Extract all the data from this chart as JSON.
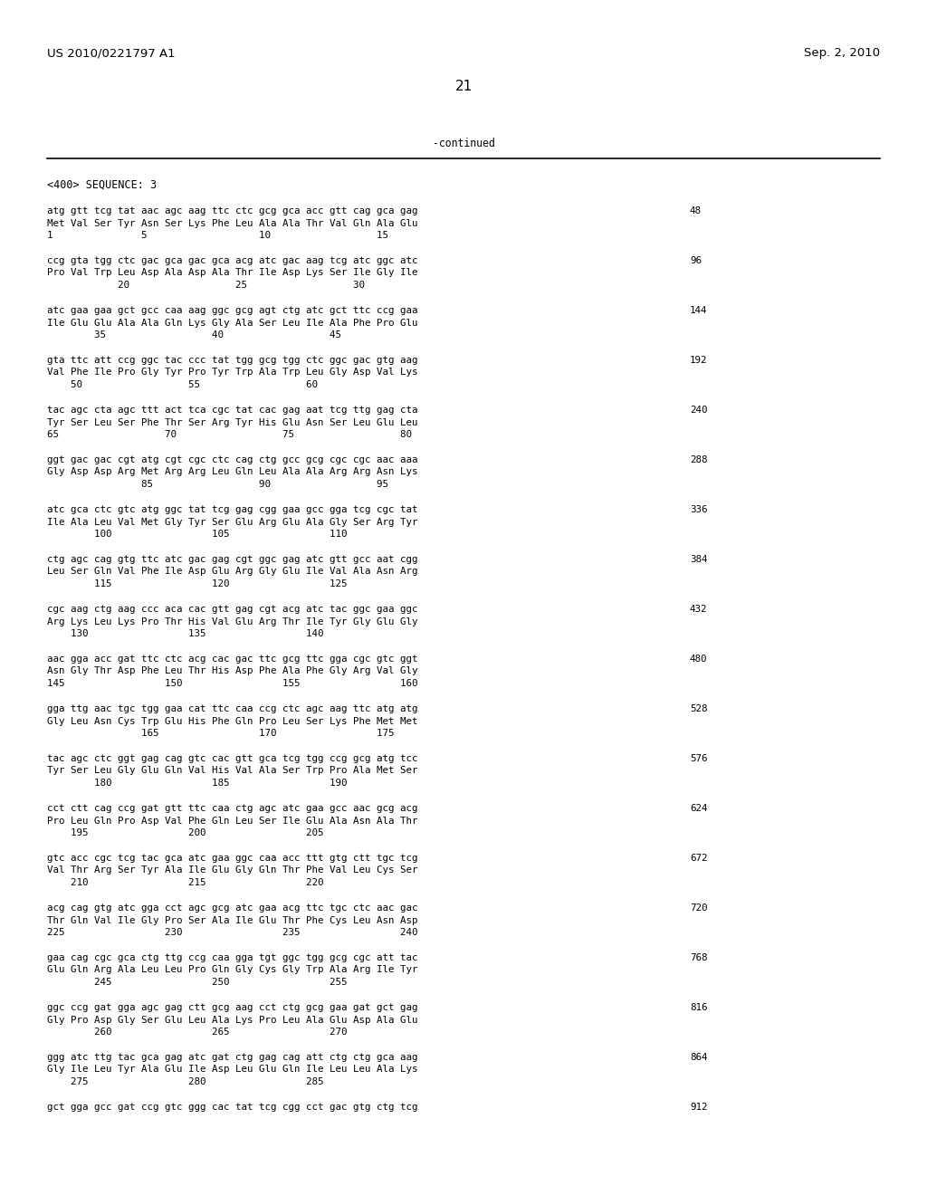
{
  "header_left": "US 2010/0221797 A1",
  "header_right": "Sep. 2, 2010",
  "page_number": "21",
  "continued_text": "-continued",
  "background_color": "#ffffff",
  "text_color": "#000000",
  "sequence_label": "<400> SEQUENCE: 3",
  "blocks": [
    {
      "dna": "atg gtt tcg tat aac agc aag ttc ctc gcg gca acc gtt cag gca gag",
      "num_right": "48",
      "aa": "Met Val Ser Tyr Asn Ser Lys Phe Leu Ala Ala Thr Val Gln Ala Glu",
      "pos": "1               5                   10                  15"
    },
    {
      "dna": "ccg gta tgg ctc gac gca gac gca acg atc gac aag tcg atc ggc atc",
      "num_right": "96",
      "aa": "Pro Val Trp Leu Asp Ala Asp Ala Thr Ile Asp Lys Ser Ile Gly Ile",
      "pos": "            20                  25                  30"
    },
    {
      "dna": "atc gaa gaa gct gcc caa aag ggc gcg agt ctg atc gct ttc ccg gaa",
      "num_right": "144",
      "aa": "Ile Glu Glu Ala Ala Gln Lys Gly Ala Ser Leu Ile Ala Phe Pro Glu",
      "pos": "        35                  40                  45"
    },
    {
      "dna": "gta ttc att ccg ggc tac ccc tat tgg gcg tgg ctc ggc gac gtg aag",
      "num_right": "192",
      "aa": "Val Phe Ile Pro Gly Tyr Pro Tyr Trp Ala Trp Leu Gly Asp Val Lys",
      "pos": "    50                  55                  60"
    },
    {
      "dna": "tac agc cta agc ttt act tca cgc tat cac gag aat tcg ttg gag cta",
      "num_right": "240",
      "aa": "Tyr Ser Leu Ser Phe Thr Ser Arg Tyr His Glu Asn Ser Leu Glu Leu",
      "pos": "65                  70                  75                  80"
    },
    {
      "dna": "ggt gac gac cgt atg cgt cgc ctc cag ctg gcc gcg cgc cgc aac aaa",
      "num_right": "288",
      "aa": "Gly Asp Asp Arg Met Arg Arg Leu Gln Leu Ala Ala Arg Arg Asn Lys",
      "pos": "                85                  90                  95"
    },
    {
      "dna": "atc gca ctc gtc atg ggc tat tcg gag cgg gaa gcc gga tcg cgc tat",
      "num_right": "336",
      "aa": "Ile Ala Leu Val Met Gly Tyr Ser Glu Arg Glu Ala Gly Ser Arg Tyr",
      "pos": "        100                 105                 110"
    },
    {
      "dna": "ctg agc cag gtg ttc atc gac gag cgt ggc gag atc gtt gcc aat cgg",
      "num_right": "384",
      "aa": "Leu Ser Gln Val Phe Ile Asp Glu Arg Gly Glu Ile Val Ala Asn Arg",
      "pos": "        115                 120                 125"
    },
    {
      "dna": "cgc aag ctg aag ccc aca cac gtt gag cgt acg atc tac ggc gaa ggc",
      "num_right": "432",
      "aa": "Arg Lys Leu Lys Pro Thr His Val Glu Arg Thr Ile Tyr Gly Glu Gly",
      "pos": "    130                 135                 140"
    },
    {
      "dna": "aac gga acc gat ttc ctc acg cac gac ttc gcg ttc gga cgc gtc ggt",
      "num_right": "480",
      "aa": "Asn Gly Thr Asp Phe Leu Thr His Asp Phe Ala Phe Gly Arg Val Gly",
      "pos": "145                 150                 155                 160"
    },
    {
      "dna": "gga ttg aac tgc tgg gaa cat ttc caa ccg ctc agc aag ttc atg atg",
      "num_right": "528",
      "aa": "Gly Leu Asn Cys Trp Glu His Phe Gln Pro Leu Ser Lys Phe Met Met",
      "pos": "                165                 170                 175"
    },
    {
      "dna": "tac agc ctc ggt gag cag gtc cac gtt gca tcg tgg ccg gcg atg tcc",
      "num_right": "576",
      "aa": "Tyr Ser Leu Gly Glu Gln Val His Val Ala Ser Trp Pro Ala Met Ser",
      "pos": "        180                 185                 190"
    },
    {
      "dna": "cct ctt cag ccg gat gtt ttc caa ctg agc atc gaa gcc aac gcg acg",
      "num_right": "624",
      "aa": "Pro Leu Gln Pro Asp Val Phe Gln Leu Ser Ile Glu Ala Asn Ala Thr",
      "pos": "    195                 200                 205"
    },
    {
      "dna": "gtc acc cgc tcg tac gca atc gaa ggc caa acc ttt gtg ctt tgc tcg",
      "num_right": "672",
      "aa": "Val Thr Arg Ser Tyr Ala Ile Glu Gly Gln Thr Phe Val Leu Cys Ser",
      "pos": "    210                 215                 220"
    },
    {
      "dna": "acg cag gtg atc gga cct agc gcg atc gaa acg ttc tgc ctc aac gac",
      "num_right": "720",
      "aa": "Thr Gln Val Ile Gly Pro Ser Ala Ile Glu Thr Phe Cys Leu Asn Asp",
      "pos": "225                 230                 235                 240"
    },
    {
      "dna": "gaa cag cgc gca ctg ttg ccg caa gga tgt ggc tgg gcg cgc att tac",
      "num_right": "768",
      "aa": "Glu Gln Arg Ala Leu Leu Pro Gln Gly Cys Gly Trp Ala Arg Ile Tyr",
      "pos": "        245                 250                 255"
    },
    {
      "dna": "ggc ccg gat gga agc gag ctt gcg aag cct ctg gcg gaa gat gct gag",
      "num_right": "816",
      "aa": "Gly Pro Asp Gly Ser Glu Leu Ala Lys Pro Leu Ala Glu Asp Ala Glu",
      "pos": "        260                 265                 270"
    },
    {
      "dna": "ggg atc ttg tac gca gag atc gat ctg gag cag att ctg ctg gca aag",
      "num_right": "864",
      "aa": "Gly Ile Leu Tyr Ala Glu Ile Asp Leu Glu Gln Ile Leu Leu Ala Lys",
      "pos": "    275                 280                 285"
    },
    {
      "dna": "gct gga gcc gat ccg gtc ggg cac tat tcg cgg cct gac gtg ctg tcg",
      "num_right": "912",
      "aa": "",
      "pos": ""
    }
  ]
}
